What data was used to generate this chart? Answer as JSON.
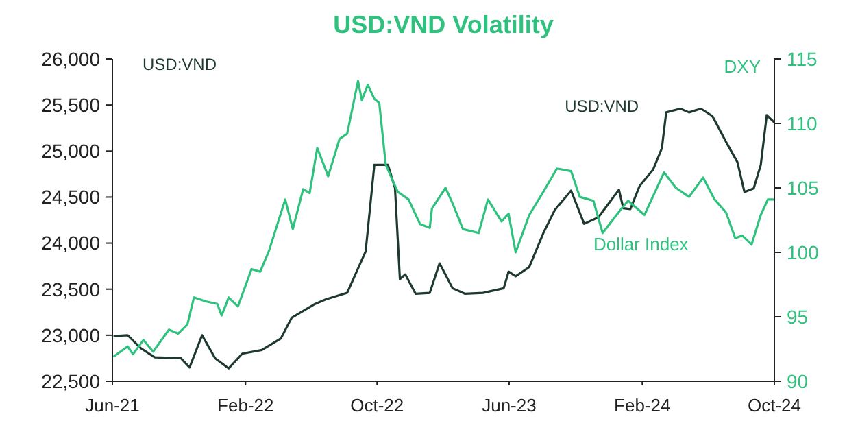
{
  "chart_data": {
    "type": "line",
    "title": "USD:VND Volatility",
    "ylabel": "USD:VND",
    "y2label": "DXY",
    "xlim": [
      "2021-06-01",
      "2024-10-01"
    ],
    "xticks": [
      {
        "value": "2021-06-01",
        "label": "Jun-21"
      },
      {
        "value": "2022-02-01",
        "label": "Feb-22"
      },
      {
        "value": "2022-10-01",
        "label": "Oct-22"
      },
      {
        "value": "2023-06-01",
        "label": "Jun-23"
      },
      {
        "value": "2024-02-01",
        "label": "Feb-24"
      },
      {
        "value": "2024-10-01",
        "label": "Oct-24"
      }
    ],
    "ylim": [
      22500,
      26000
    ],
    "yticks": [
      {
        "value": 22500,
        "label": "22,500"
      },
      {
        "value": 23000,
        "label": "23,000"
      },
      {
        "value": 23500,
        "label": "23,500"
      },
      {
        "value": 24000,
        "label": "24,000"
      },
      {
        "value": 24500,
        "label": "24,500"
      },
      {
        "value": 25000,
        "label": "25,000"
      },
      {
        "value": 25500,
        "label": "25,500"
      },
      {
        "value": 26000,
        "label": "26,000"
      }
    ],
    "y2lim": [
      90,
      115
    ],
    "y2ticks": [
      90,
      95,
      100,
      105,
      110,
      115
    ],
    "grid": false,
    "marker": "none",
    "line_style": "solid",
    "series": [
      {
        "name": "USD:VND",
        "color": "#1e3a2e",
        "x": [
          "2021-06-03",
          "2021-06-29",
          "2021-07-23",
          "2021-08-18",
          "2021-10-05",
          "2021-10-21",
          "2021-11-13",
          "2021-12-07",
          "2022-01-01",
          "2022-01-26",
          "2022-03-03",
          "2022-04-07",
          "2022-04-27",
          "2022-06-09",
          "2022-06-29",
          "2022-08-07",
          "2022-09-10",
          "2022-09-26",
          "2022-10-21",
          "2022-11-03",
          "2022-11-12",
          "2022-11-22",
          "2022-12-11",
          "2023-01-06",
          "2023-01-24",
          "2023-02-17",
          "2023-03-12",
          "2023-04-14",
          "2023-05-22",
          "2023-05-31",
          "2023-06-13",
          "2023-07-08",
          "2023-08-03",
          "2023-08-24",
          "2023-09-23",
          "2023-10-17",
          "2023-11-12",
          "2023-12-20",
          "2023-12-28",
          "2024-01-10",
          "2024-01-27",
          "2024-02-21",
          "2024-03-08",
          "2024-03-16",
          "2024-04-11",
          "2024-04-27",
          "2024-05-19",
          "2024-06-09",
          "2024-07-04",
          "2024-07-25",
          "2024-08-07",
          "2024-08-24",
          "2024-09-06",
          "2024-09-17",
          "2024-10-01"
        ],
        "values": [
          22990,
          23000,
          22860,
          22760,
          22750,
          22650,
          23000,
          22750,
          22640,
          22800,
          22840,
          22965,
          23190,
          23340,
          23390,
          23460,
          23910,
          24850,
          24850,
          24600,
          23610,
          23660,
          23450,
          23460,
          23780,
          23510,
          23450,
          23460,
          23510,
          23690,
          23640,
          23740,
          24110,
          24360,
          24570,
          24210,
          24280,
          24580,
          24380,
          24370,
          24620,
          24800,
          25030,
          25420,
          25460,
          25420,
          25460,
          25380,
          25100,
          24880,
          24555,
          24595,
          24850,
          25390,
          25310
        ]
      },
      {
        "name": "Dollar Index",
        "color": "#2ec27e",
        "axis": "y2",
        "x": [
          "2021-06-03",
          "2021-06-29",
          "2021-07-09",
          "2021-07-28",
          "2021-08-15",
          "2021-09-13",
          "2021-09-30",
          "2021-10-17",
          "2021-10-29",
          "2021-11-20",
          "2021-12-11",
          "2021-12-19",
          "2022-01-01",
          "2022-01-18",
          "2022-02-12",
          "2022-02-28",
          "2022-03-16",
          "2022-04-15",
          "2022-04-29",
          "2022-05-18",
          "2022-05-30",
          "2022-06-13",
          "2022-07-03",
          "2022-07-24",
          "2022-08-07",
          "2022-08-27",
          "2022-09-03",
          "2022-09-14",
          "2022-09-26",
          "2022-10-05",
          "2022-10-17",
          "2022-11-08",
          "2022-11-28",
          "2022-12-19",
          "2023-01-06",
          "2023-01-10",
          "2023-02-04",
          "2023-02-17",
          "2023-03-08",
          "2023-04-06",
          "2023-04-23",
          "2023-05-18",
          "2023-05-31",
          "2023-06-13",
          "2023-07-08",
          "2023-08-03",
          "2023-08-28",
          "2023-09-23",
          "2023-10-09",
          "2023-11-03",
          "2023-11-20",
          "2023-12-23",
          "2024-01-06",
          "2024-02-05",
          "2024-03-12",
          "2024-04-03",
          "2024-04-27",
          "2024-05-23",
          "2024-06-13",
          "2024-07-04",
          "2024-07-21",
          "2024-08-03",
          "2024-08-20",
          "2024-09-06",
          "2024-09-19",
          "2024-10-01"
        ],
        "values": [
          91.9,
          92.7,
          92.1,
          93.2,
          92.3,
          94.0,
          93.7,
          94.4,
          96.5,
          96.2,
          96.0,
          95.1,
          96.5,
          95.8,
          98.7,
          98.5,
          100.1,
          104.1,
          101.8,
          104.9,
          104.6,
          108.1,
          105.9,
          108.8,
          109.2,
          113.3,
          111.8,
          113.0,
          111.9,
          111.6,
          106.8,
          104.7,
          104.1,
          102.2,
          101.9,
          103.4,
          105.0,
          103.8,
          101.8,
          101.5,
          104.1,
          102.4,
          103.0,
          100.0,
          102.9,
          104.7,
          106.5,
          106.3,
          104.3,
          104.0,
          101.5,
          103.3,
          104.0,
          102.9,
          106.2,
          105.0,
          104.3,
          105.8,
          104.1,
          103.1,
          101.1,
          101.3,
          100.6,
          102.9,
          104.1,
          104.1
        ]
      }
    ]
  }
}
